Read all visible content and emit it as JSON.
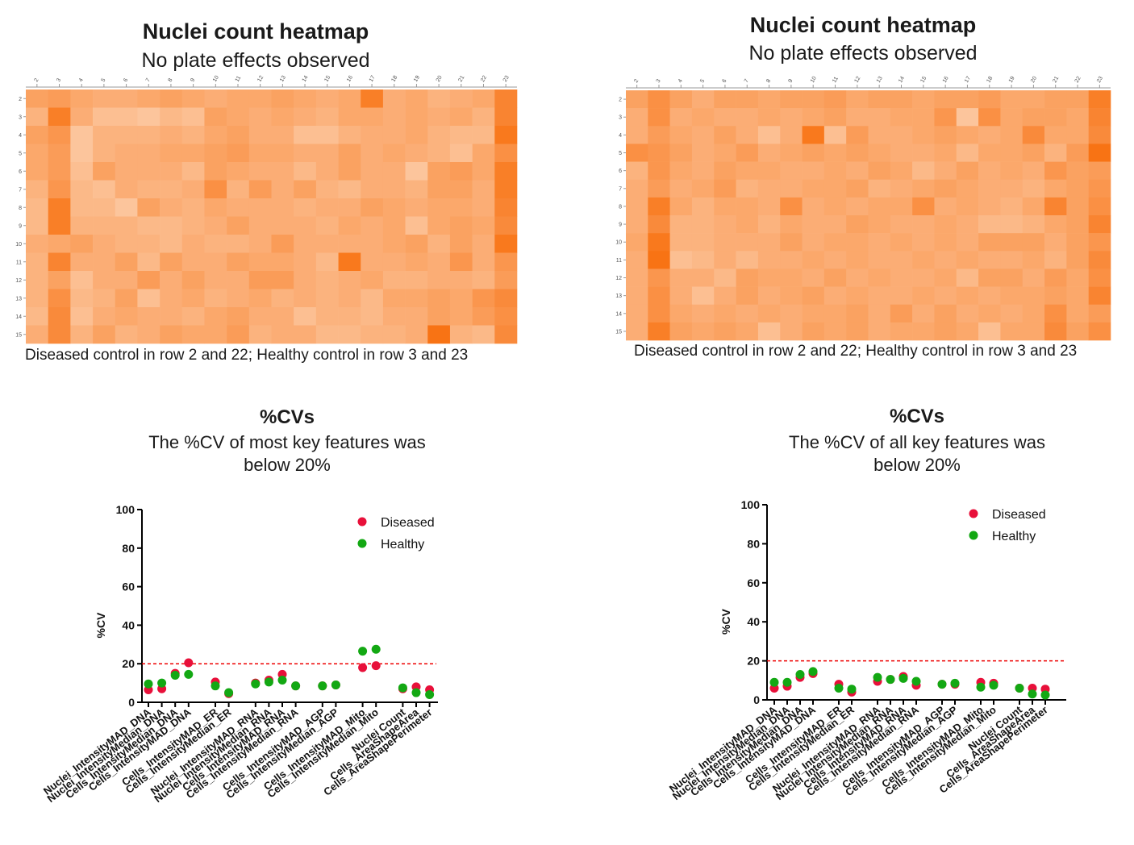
{
  "chart_data": [
    {
      "type": "heatmap",
      "title": "Nuclei count heatmap",
      "subtitle": "No plate effects observed",
      "caption": "Diseased control in row 2 and 22; Healthy control in row 3 and 23",
      "columns": [
        "2",
        "3",
        "4",
        "5",
        "6",
        "7",
        "8",
        "9",
        "10",
        "11",
        "12",
        "13",
        "14",
        "15",
        "16",
        "17",
        "18",
        "19",
        "20",
        "21",
        "22",
        "23"
      ],
      "rows": [
        "2",
        "3",
        "4",
        "5",
        "6",
        "7",
        "8",
        "9",
        "10",
        "11",
        "12",
        "13",
        "14",
        "15"
      ],
      "color_low": "#fde2cc",
      "color_high": "#f86d0a",
      "values": [
        [
          0.55,
          0.6,
          0.5,
          0.45,
          0.45,
          0.5,
          0.55,
          0.5,
          0.45,
          0.5,
          0.5,
          0.55,
          0.5,
          0.45,
          0.5,
          0.85,
          0.45,
          0.5,
          0.4,
          0.45,
          0.5,
          0.8
        ],
        [
          0.4,
          0.85,
          0.45,
          0.3,
          0.3,
          0.25,
          0.35,
          0.3,
          0.55,
          0.5,
          0.45,
          0.5,
          0.45,
          0.4,
          0.5,
          0.5,
          0.45,
          0.5,
          0.45,
          0.5,
          0.4,
          0.8
        ],
        [
          0.55,
          0.65,
          0.25,
          0.4,
          0.4,
          0.4,
          0.45,
          0.4,
          0.5,
          0.55,
          0.45,
          0.45,
          0.3,
          0.3,
          0.4,
          0.45,
          0.45,
          0.5,
          0.4,
          0.35,
          0.35,
          0.9
        ],
        [
          0.5,
          0.6,
          0.25,
          0.4,
          0.45,
          0.45,
          0.5,
          0.5,
          0.55,
          0.6,
          0.5,
          0.5,
          0.45,
          0.45,
          0.55,
          0.45,
          0.5,
          0.45,
          0.4,
          0.3,
          0.5,
          0.7
        ],
        [
          0.5,
          0.6,
          0.3,
          0.55,
          0.45,
          0.45,
          0.45,
          0.35,
          0.55,
          0.5,
          0.45,
          0.45,
          0.35,
          0.45,
          0.55,
          0.45,
          0.45,
          0.25,
          0.55,
          0.6,
          0.5,
          0.85
        ],
        [
          0.4,
          0.65,
          0.35,
          0.3,
          0.45,
          0.4,
          0.4,
          0.45,
          0.7,
          0.4,
          0.6,
          0.45,
          0.55,
          0.4,
          0.35,
          0.45,
          0.45,
          0.4,
          0.55,
          0.55,
          0.45,
          0.85
        ],
        [
          0.35,
          0.85,
          0.35,
          0.35,
          0.25,
          0.55,
          0.45,
          0.4,
          0.5,
          0.45,
          0.45,
          0.45,
          0.4,
          0.45,
          0.45,
          0.55,
          0.5,
          0.45,
          0.5,
          0.5,
          0.45,
          0.8
        ],
        [
          0.35,
          0.85,
          0.4,
          0.4,
          0.4,
          0.35,
          0.35,
          0.4,
          0.45,
          0.55,
          0.45,
          0.45,
          0.45,
          0.4,
          0.5,
          0.45,
          0.5,
          0.3,
          0.5,
          0.55,
          0.5,
          0.75
        ],
        [
          0.45,
          0.5,
          0.55,
          0.45,
          0.4,
          0.4,
          0.35,
          0.45,
          0.4,
          0.4,
          0.45,
          0.6,
          0.45,
          0.45,
          0.45,
          0.45,
          0.5,
          0.55,
          0.4,
          0.55,
          0.45,
          0.9
        ],
        [
          0.4,
          0.8,
          0.45,
          0.45,
          0.55,
          0.35,
          0.55,
          0.45,
          0.45,
          0.55,
          0.5,
          0.5,
          0.45,
          0.35,
          0.9,
          0.45,
          0.45,
          0.5,
          0.45,
          0.65,
          0.45,
          0.65
        ],
        [
          0.4,
          0.55,
          0.3,
          0.45,
          0.45,
          0.6,
          0.45,
          0.55,
          0.45,
          0.45,
          0.6,
          0.6,
          0.45,
          0.4,
          0.45,
          0.5,
          0.4,
          0.4,
          0.45,
          0.45,
          0.4,
          0.6
        ],
        [
          0.4,
          0.7,
          0.35,
          0.4,
          0.55,
          0.3,
          0.45,
          0.5,
          0.4,
          0.45,
          0.5,
          0.4,
          0.45,
          0.4,
          0.45,
          0.35,
          0.5,
          0.5,
          0.55,
          0.5,
          0.65,
          0.75
        ],
        [
          0.35,
          0.75,
          0.3,
          0.45,
          0.5,
          0.45,
          0.45,
          0.4,
          0.5,
          0.55,
          0.45,
          0.45,
          0.3,
          0.4,
          0.4,
          0.35,
          0.45,
          0.45,
          0.55,
          0.5,
          0.6,
          0.7
        ],
        [
          0.45,
          0.75,
          0.4,
          0.55,
          0.4,
          0.45,
          0.55,
          0.5,
          0.5,
          0.6,
          0.4,
          0.45,
          0.45,
          0.35,
          0.35,
          0.4,
          0.4,
          0.45,
          0.95,
          0.4,
          0.35,
          0.75
        ]
      ]
    },
    {
      "type": "heatmap",
      "title": "Nuclei count heatmap",
      "subtitle": "No plate effects observed",
      "caption": "Diseased control in row 2 and 22; Healthy control in row 3 and 23",
      "columns": [
        "2",
        "3",
        "4",
        "5",
        "6",
        "7",
        "8",
        "9",
        "10",
        "11",
        "12",
        "13",
        "14",
        "15",
        "16",
        "17",
        "18",
        "19",
        "20",
        "21",
        "22",
        "23"
      ],
      "rows": [
        "2",
        "3",
        "4",
        "5",
        "6",
        "7",
        "8",
        "9",
        "10",
        "11",
        "12",
        "13",
        "14",
        "15"
      ],
      "color_low": "#fde2cc",
      "color_high": "#f86d0a",
      "values": [
        [
          0.55,
          0.7,
          0.55,
          0.45,
          0.55,
          0.55,
          0.5,
          0.55,
          0.55,
          0.6,
          0.5,
          0.55,
          0.55,
          0.5,
          0.55,
          0.55,
          0.6,
          0.5,
          0.5,
          0.55,
          0.55,
          0.85
        ],
        [
          0.45,
          0.7,
          0.45,
          0.5,
          0.45,
          0.45,
          0.5,
          0.45,
          0.5,
          0.55,
          0.45,
          0.45,
          0.5,
          0.5,
          0.65,
          0.25,
          0.7,
          0.5,
          0.55,
          0.55,
          0.5,
          0.8
        ],
        [
          0.45,
          0.6,
          0.5,
          0.45,
          0.55,
          0.45,
          0.3,
          0.45,
          0.9,
          0.3,
          0.6,
          0.45,
          0.45,
          0.5,
          0.55,
          0.5,
          0.45,
          0.5,
          0.75,
          0.5,
          0.5,
          0.75
        ],
        [
          0.7,
          0.65,
          0.55,
          0.45,
          0.5,
          0.6,
          0.45,
          0.5,
          0.55,
          0.5,
          0.55,
          0.5,
          0.45,
          0.45,
          0.5,
          0.35,
          0.5,
          0.5,
          0.55,
          0.4,
          0.6,
          0.95
        ],
        [
          0.4,
          0.65,
          0.5,
          0.45,
          0.55,
          0.5,
          0.5,
          0.45,
          0.45,
          0.5,
          0.45,
          0.55,
          0.5,
          0.35,
          0.45,
          0.55,
          0.45,
          0.5,
          0.45,
          0.65,
          0.55,
          0.6
        ],
        [
          0.45,
          0.6,
          0.45,
          0.5,
          0.6,
          0.4,
          0.45,
          0.45,
          0.5,
          0.5,
          0.55,
          0.4,
          0.45,
          0.5,
          0.55,
          0.5,
          0.45,
          0.45,
          0.4,
          0.5,
          0.55,
          0.65
        ],
        [
          0.45,
          0.85,
          0.5,
          0.4,
          0.5,
          0.5,
          0.45,
          0.7,
          0.45,
          0.5,
          0.45,
          0.5,
          0.5,
          0.7,
          0.45,
          0.5,
          0.45,
          0.4,
          0.5,
          0.8,
          0.55,
          0.7
        ],
        [
          0.45,
          0.75,
          0.4,
          0.4,
          0.45,
          0.5,
          0.4,
          0.5,
          0.45,
          0.45,
          0.55,
          0.5,
          0.45,
          0.45,
          0.5,
          0.45,
          0.35,
          0.35,
          0.4,
          0.5,
          0.55,
          0.8
        ],
        [
          0.5,
          0.9,
          0.4,
          0.4,
          0.45,
          0.45,
          0.45,
          0.55,
          0.45,
          0.5,
          0.5,
          0.45,
          0.5,
          0.45,
          0.5,
          0.45,
          0.55,
          0.55,
          0.55,
          0.45,
          0.55,
          0.65
        ],
        [
          0.45,
          0.95,
          0.3,
          0.35,
          0.45,
          0.35,
          0.45,
          0.45,
          0.5,
          0.45,
          0.5,
          0.45,
          0.45,
          0.5,
          0.45,
          0.5,
          0.45,
          0.45,
          0.5,
          0.4,
          0.55,
          0.75
        ],
        [
          0.45,
          0.65,
          0.45,
          0.45,
          0.35,
          0.55,
          0.5,
          0.5,
          0.45,
          0.55,
          0.45,
          0.5,
          0.45,
          0.45,
          0.5,
          0.35,
          0.55,
          0.55,
          0.45,
          0.6,
          0.5,
          0.7
        ],
        [
          0.45,
          0.7,
          0.45,
          0.3,
          0.45,
          0.55,
          0.45,
          0.5,
          0.55,
          0.45,
          0.5,
          0.45,
          0.45,
          0.5,
          0.45,
          0.5,
          0.45,
          0.5,
          0.5,
          0.55,
          0.5,
          0.8
        ],
        [
          0.45,
          0.7,
          0.5,
          0.45,
          0.5,
          0.45,
          0.5,
          0.45,
          0.5,
          0.5,
          0.55,
          0.45,
          0.6,
          0.45,
          0.55,
          0.45,
          0.5,
          0.45,
          0.5,
          0.7,
          0.5,
          0.6
        ],
        [
          0.45,
          0.85,
          0.55,
          0.5,
          0.55,
          0.5,
          0.3,
          0.45,
          0.55,
          0.5,
          0.55,
          0.45,
          0.5,
          0.5,
          0.55,
          0.5,
          0.3,
          0.5,
          0.5,
          0.75,
          0.55,
          0.7
        ]
      ]
    },
    {
      "type": "scatter",
      "title": "%CVs",
      "subtitle_lines": [
        "The %CV of most key features was",
        "below 20%"
      ],
      "ylabel": "%CV",
      "ylim": [
        0,
        100
      ],
      "yticks": [
        "0",
        "20",
        "40",
        "60",
        "80",
        "100"
      ],
      "threshold": 20,
      "threshold_color": "#ee0000",
      "legend_position": "top-right",
      "categories": [
        {
          "label": "Nuclei_IntensityMAD_DNA",
          "x": 1
        },
        {
          "label": "Nuclei_IntensityMedian_DNA",
          "x": 2
        },
        {
          "label": "Cells_IntensityMedian_DNA",
          "x": 3
        },
        {
          "label": "Cells_IntensityMAD_DNA",
          "x": 4
        },
        {
          "label": "Cells_IntensityMAD_ER",
          "x": 6
        },
        {
          "label": "Cells_IntensityMedian_ER",
          "x": 7
        },
        {
          "label": "Nuclei_IntensityMAD_RNA",
          "x": 9
        },
        {
          "label": "Nuclei_IntensityMedian_RNA",
          "x": 10
        },
        {
          "label": "Cells_IntensityMAD_RNA",
          "x": 11
        },
        {
          "label": "Cells_IntensityMedian_RNA",
          "x": 12
        },
        {
          "label": "Cells_IntensityMAD_AGP",
          "x": 14
        },
        {
          "label": "Cells_IntensityMedian_AGP",
          "x": 15
        },
        {
          "label": "Cells_IntensityMAD_Mito",
          "x": 17
        },
        {
          "label": "Cells_IntensityMedian_Mito",
          "x": 18
        },
        {
          "label": "Nuclei Count",
          "x": 20
        },
        {
          "label": "Cells_AreaShapeArea",
          "x": 21
        },
        {
          "label": "Cells_AreaShapePerimeter",
          "x": 22
        }
      ],
      "series": [
        {
          "name": "Diseased",
          "color": "#e8103a",
          "values": [
            6.5,
            7,
            15,
            20.5,
            10.5,
            4.5,
            10,
            11.5,
            14.5,
            8.5,
            8.5,
            9,
            18,
            19,
            7,
            8,
            6.5
          ]
        },
        {
          "name": "Healthy",
          "color": "#13a813",
          "values": [
            9.5,
            10,
            14,
            14.5,
            8.5,
            5,
            9.5,
            10.5,
            11.5,
            8.5,
            8.5,
            9,
            26.5,
            27.5,
            7.5,
            5,
            4
          ]
        }
      ]
    },
    {
      "type": "scatter",
      "title": "%CVs",
      "subtitle_lines": [
        "The %CV of all key features was",
        "below 20%"
      ],
      "ylabel": "%CV",
      "ylim": [
        0,
        100
      ],
      "yticks": [
        "0",
        "20",
        "40",
        "60",
        "80",
        "100"
      ],
      "threshold": 20,
      "threshold_color": "#ee0000",
      "legend_position": "top-right",
      "categories": [
        {
          "label": "Nuclei_IntensityMAD_DNA",
          "x": 1
        },
        {
          "label": "Nuclei_IntensityMedian_DNA",
          "x": 2
        },
        {
          "label": "Cells_IntensityMedian_DNA",
          "x": 3
        },
        {
          "label": "Cells_IntensityMAD_DNA",
          "x": 4
        },
        {
          "label": "Cells_IntensityMAD_ER",
          "x": 6
        },
        {
          "label": "Cells_IntensityMedian_ER",
          "x": 7
        },
        {
          "label": "Nuclei_IntensityMAD_RNA",
          "x": 9
        },
        {
          "label": "Nuclei_IntensityMedian_RNA",
          "x": 10
        },
        {
          "label": "Cells_IntensityMAD_RNA",
          "x": 11
        },
        {
          "label": "Cells_IntensityMedian_RNA",
          "x": 12
        },
        {
          "label": "Cells_IntensityMAD_AGP",
          "x": 14
        },
        {
          "label": "Cells_IntensityMedian_AGP",
          "x": 15
        },
        {
          "label": "Cells_IntensityMAD_Mito",
          "x": 17
        },
        {
          "label": "Cells_IntensityMedian_Mito",
          "x": 18
        },
        {
          "label": "Nuclei Count",
          "x": 20
        },
        {
          "label": "Cells_AreaShapeArea",
          "x": 21
        },
        {
          "label": "Cells_AreaShapePerimeter",
          "x": 22
        }
      ],
      "series": [
        {
          "name": "Diseased",
          "color": "#e8103a",
          "values": [
            6,
            7,
            11.5,
            13.5,
            8,
            4,
            9.5,
            10.5,
            12,
            7.5,
            8,
            8,
            9,
            8.5,
            6,
            6,
            5.5
          ]
        },
        {
          "name": "Healthy",
          "color": "#13a813",
          "values": [
            9,
            9,
            13,
            14.5,
            6,
            5.5,
            11.5,
            10.5,
            11,
            9.5,
            8,
            8.5,
            6.5,
            7.5,
            6,
            3,
            2.5
          ]
        }
      ]
    }
  ]
}
